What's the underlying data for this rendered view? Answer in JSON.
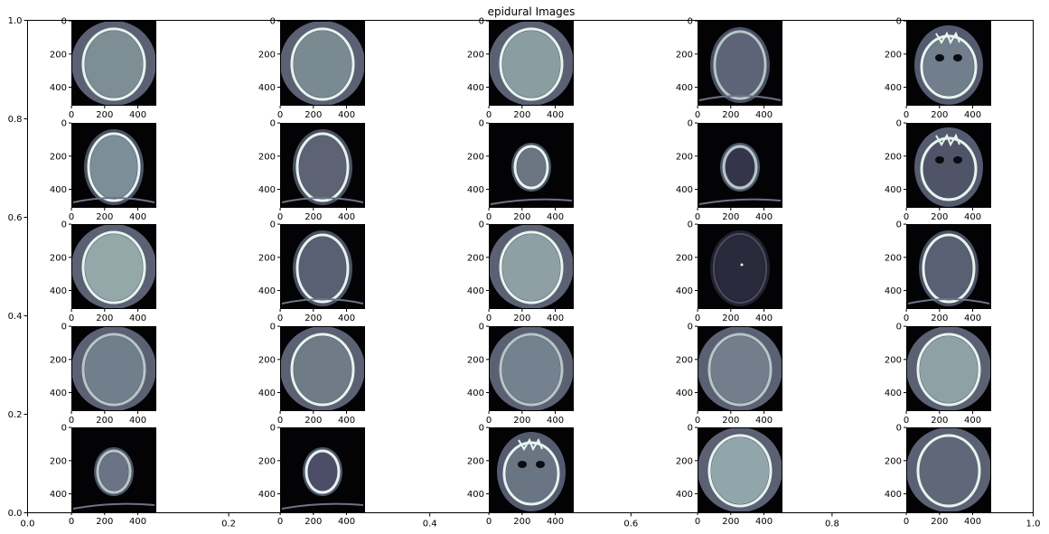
{
  "figure": {
    "title": "epidural Images"
  },
  "outer_axes": {
    "xticks": [
      "0.0",
      "0.2",
      "0.4",
      "0.6",
      "0.8",
      "1.0"
    ],
    "yticks": [
      "0.0",
      "0.2",
      "0.4",
      "0.6",
      "0.8",
      "1.0"
    ]
  },
  "chart_data": {
    "type": "image-grid",
    "title": "epidural Images",
    "outer_axes": {
      "xlim": [
        0,
        1
      ],
      "ylim": [
        0,
        1
      ],
      "xticks": [
        0,
        0.2,
        0.4,
        0.6,
        0.8,
        1.0
      ],
      "yticks": [
        0,
        0.2,
        0.4,
        0.6,
        0.8,
        1.0
      ]
    },
    "grid": {
      "rows": 5,
      "cols": 5
    },
    "panel_axes": {
      "xticks": [
        0,
        200,
        400
      ],
      "yticks": [
        0,
        200,
        400
      ],
      "tick_labels": [
        "0",
        "200",
        "400"
      ]
    },
    "colormap": "bone",
    "panels": [
      {
        "row": 0,
        "col": 0,
        "kind": "round",
        "bone": "bright",
        "brain": "#7e8e95"
      },
      {
        "row": 0,
        "col": 1,
        "kind": "round",
        "bone": "bright",
        "brain": "#7a8a91"
      },
      {
        "row": 0,
        "col": 2,
        "kind": "round",
        "bone": "bright",
        "brain": "#8a9ea2"
      },
      {
        "row": 0,
        "col": 3,
        "kind": "oval",
        "bone": "medium",
        "brain": "#5e6478"
      },
      {
        "row": 0,
        "col": 4,
        "kind": "base",
        "bone": "bright",
        "brain": "#717e8b"
      },
      {
        "row": 1,
        "col": 0,
        "kind": "oval",
        "bone": "bright",
        "brain": "#7c8f98"
      },
      {
        "row": 1,
        "col": 1,
        "kind": "oval",
        "bone": "bright",
        "brain": "#5d6275"
      },
      {
        "row": 1,
        "col": 2,
        "kind": "small",
        "bone": "bright",
        "brain": "#6b7682"
      },
      {
        "row": 1,
        "col": 3,
        "kind": "small",
        "bone": "medium",
        "brain": "#34354a"
      },
      {
        "row": 1,
        "col": 4,
        "kind": "base",
        "bone": "bright",
        "brain": "#4f5468"
      },
      {
        "row": 2,
        "col": 0,
        "kind": "round",
        "bone": "bright",
        "brain": "#94a8aa"
      },
      {
        "row": 2,
        "col": 1,
        "kind": "oval",
        "bone": "bright",
        "brain": "#5a6073"
      },
      {
        "row": 2,
        "col": 2,
        "kind": "round",
        "bone": "bright",
        "brain": "#8ea0a4"
      },
      {
        "row": 2,
        "col": 3,
        "kind": "dark",
        "bone": "faint",
        "brain": "#2a2a3c"
      },
      {
        "row": 2,
        "col": 4,
        "kind": "oval",
        "bone": "bright",
        "brain": "#5a6073"
      },
      {
        "row": 3,
        "col": 0,
        "kind": "round",
        "bone": "medium",
        "brain": "#717f8c"
      },
      {
        "row": 3,
        "col": 1,
        "kind": "round",
        "bone": "bright",
        "brain": "#6f7b86"
      },
      {
        "row": 3,
        "col": 2,
        "kind": "round",
        "bone": "medium",
        "brain": "#748290"
      },
      {
        "row": 3,
        "col": 3,
        "kind": "round",
        "bone": "medium",
        "brain": "#737d8c"
      },
      {
        "row": 3,
        "col": 4,
        "kind": "round",
        "bone": "bright",
        "brain": "#8ea2a6"
      },
      {
        "row": 4,
        "col": 0,
        "kind": "small",
        "bone": "medium",
        "brain": "#6a7486"
      },
      {
        "row": 4,
        "col": 1,
        "kind": "small",
        "bone": "bright",
        "brain": "#4b4e66"
      },
      {
        "row": 4,
        "col": 2,
        "kind": "base",
        "bone": "bright",
        "brain": "#6a7584"
      },
      {
        "row": 4,
        "col": 3,
        "kind": "round",
        "bone": "bright",
        "brain": "#91a6aa"
      },
      {
        "row": 4,
        "col": 4,
        "kind": "round",
        "bone": "bright",
        "brain": "#5f6778"
      }
    ]
  }
}
